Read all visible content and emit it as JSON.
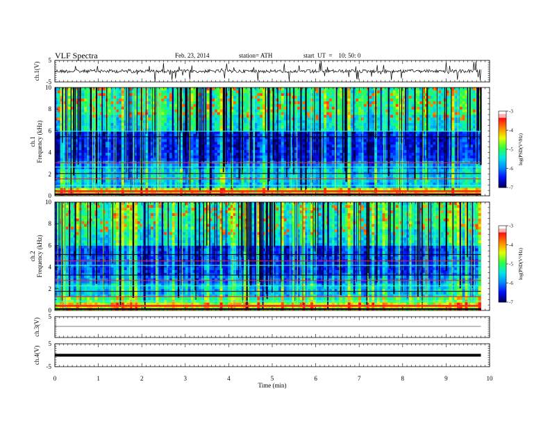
{
  "header": {
    "title": "VLF  Spectra",
    "date": "Feb. 23, 2014",
    "station": "station= ATH",
    "start": "start  UT  =    10: 50: 0"
  },
  "chart_data": {
    "type": "heatmap",
    "xlabel": "Time  (min)",
    "xlim": [
      0,
      10
    ],
    "xticks": [
      "0",
      "1",
      "2",
      "3",
      "4",
      "5",
      "6",
      "7",
      "8",
      "9",
      "10"
    ],
    "data_end_min": 9.8,
    "panels": [
      {
        "id": "ch1-waveform",
        "type": "line",
        "ylabel": "ch.1(V)",
        "ylim": [
          -5,
          5
        ],
        "yticks": [
          "5",
          "-5"
        ]
      },
      {
        "id": "ch1-spectrogram",
        "type": "heatmap",
        "ylabel": "ch.1\nFrequency  (kHz)",
        "ylim": [
          0,
          10
        ],
        "yticks": [
          "0",
          "2",
          "4",
          "6",
          "8",
          "10"
        ],
        "colorbar": {
          "label": "log(PSD(V²/Hz)",
          "ticks": [
            "-3",
            "-4",
            "-5",
            "-6",
            "-7"
          ],
          "range": [
            -7,
            -3
          ]
        }
      },
      {
        "id": "ch2-spectrogram",
        "type": "heatmap",
        "ylabel": "ch.2\nFrequency  (kHz)",
        "ylim": [
          0,
          10
        ],
        "yticks": [
          "0",
          "2",
          "4",
          "6",
          "8",
          "10"
        ],
        "colorbar": {
          "label": "log(PSD(V²/Hz)",
          "ticks": [
            "-3",
            "-4",
            "-5",
            "-6",
            "-7"
          ],
          "range": [
            -7,
            -3
          ]
        }
      },
      {
        "id": "ch3-waveform",
        "type": "line",
        "ylabel": "ch.3(V)",
        "ylim": [
          -5,
          5
        ],
        "yticks": [
          "5"
        ]
      },
      {
        "id": "ch4-waveform",
        "type": "line",
        "ylabel": "ch.4(V)",
        "ylim": [
          -5,
          5
        ],
        "yticks": [
          "5",
          "-5"
        ]
      }
    ],
    "colormap": [
      "#000060",
      "#0010ff",
      "#0090ff",
      "#00e8e0",
      "#30ff40",
      "#e8ff00",
      "#ff8800",
      "#ff1010",
      "#ffffff"
    ]
  }
}
